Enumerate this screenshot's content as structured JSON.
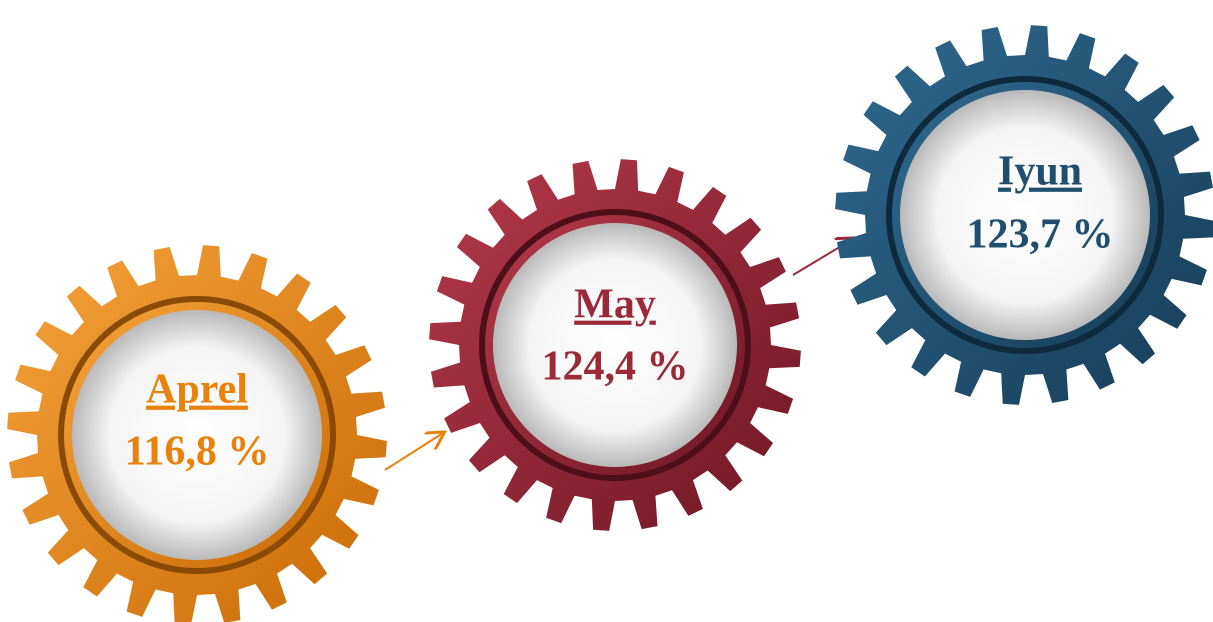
{
  "nodes": [
    {
      "label": "Aprel",
      "value": "116,8 %"
    },
    {
      "label": "May",
      "value": "124,4 %"
    },
    {
      "label": "Iyun",
      "value": "123,7 %"
    }
  ]
}
